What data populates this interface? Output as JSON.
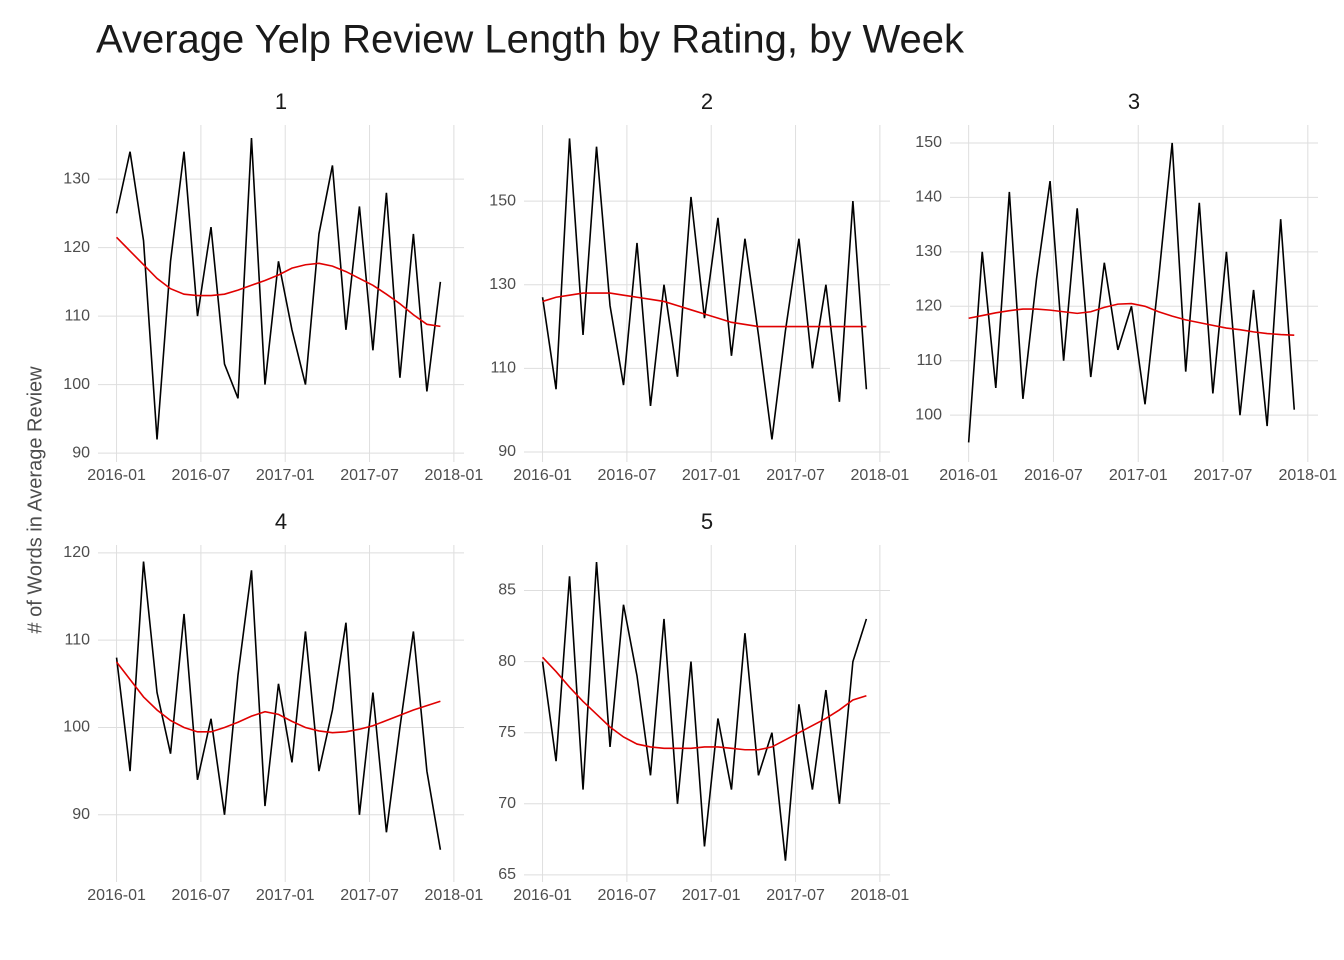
{
  "title": "Average Yelp Review Length by Rating, by Week",
  "y_label": "# of Words in Average Review",
  "chart_data": [
    {
      "type": "line",
      "title": "1",
      "x": [
        2016.0,
        2016.08,
        2016.16,
        2016.24,
        2016.32,
        2016.4,
        2016.48,
        2016.56,
        2016.64,
        2016.72,
        2016.8,
        2016.88,
        2016.96,
        2017.04,
        2017.12,
        2017.2,
        2017.28,
        2017.36,
        2017.44,
        2017.52,
        2017.6,
        2017.68,
        2017.76,
        2017.84,
        2017.92
      ],
      "series": [
        {
          "color": "#000000",
          "values": [
            125,
            134,
            121,
            92,
            118,
            134,
            110,
            123,
            103,
            98,
            136,
            100,
            118,
            108,
            100,
            122,
            132,
            108,
            126,
            105,
            128,
            101,
            122,
            99,
            115
          ]
        },
        {
          "color": "#e00000",
          "values": [
            121.5,
            119.5,
            117.5,
            115.5,
            114,
            113.2,
            113,
            113,
            113.2,
            113.8,
            114.5,
            115.2,
            116,
            117,
            117.5,
            117.7,
            117.3,
            116.5,
            115.5,
            114.5,
            113.2,
            111.8,
            110.2,
            108.8,
            108.5
          ]
        }
      ],
      "xlim": [
        2015.89,
        2018.06
      ],
      "xticks": [
        {
          "value": 2016.0,
          "label": "2016-01"
        },
        {
          "value": 2016.5,
          "label": "2016-07"
        },
        {
          "value": 2017.0,
          "label": "2017-01"
        },
        {
          "value": 2017.5,
          "label": "2017-07"
        },
        {
          "value": 2018.0,
          "label": "2018-01"
        }
      ],
      "ylim": [
        88.7,
        137.9
      ],
      "yticks": [
        90,
        100,
        110,
        120,
        130
      ],
      "grid": true
    },
    {
      "type": "line",
      "title": "2",
      "x": [
        2016.0,
        2016.08,
        2016.16,
        2016.24,
        2016.32,
        2016.4,
        2016.48,
        2016.56,
        2016.64,
        2016.72,
        2016.8,
        2016.88,
        2016.96,
        2017.04,
        2017.12,
        2017.2,
        2017.28,
        2017.36,
        2017.44,
        2017.52,
        2017.6,
        2017.68,
        2017.76,
        2017.84,
        2017.92
      ],
      "series": [
        {
          "color": "#000000",
          "values": [
            127,
            105,
            165,
            118,
            163,
            125,
            106,
            140,
            101,
            130,
            108,
            151,
            122,
            146,
            113,
            141,
            118,
            93,
            119,
            141,
            110,
            130,
            102,
            150,
            105
          ]
        },
        {
          "color": "#e00000",
          "values": [
            126,
            127,
            127.5,
            128,
            128,
            128,
            127.5,
            127,
            126.5,
            126,
            125,
            124,
            123,
            122,
            121,
            120.5,
            120,
            120,
            120,
            120,
            120,
            120,
            120,
            120,
            120
          ]
        }
      ],
      "xlim": [
        2015.89,
        2018.06
      ],
      "xticks": [
        {
          "value": 2016.0,
          "label": "2016-01"
        },
        {
          "value": 2016.5,
          "label": "2016-07"
        },
        {
          "value": 2017.0,
          "label": "2017-01"
        },
        {
          "value": 2017.5,
          "label": "2017-07"
        },
        {
          "value": 2018.0,
          "label": "2018-01"
        }
      ],
      "ylim": [
        87.6,
        168.2
      ],
      "yticks": [
        90,
        110,
        130,
        150
      ],
      "grid": true
    },
    {
      "type": "line",
      "title": "3",
      "x": [
        2016.0,
        2016.08,
        2016.16,
        2016.24,
        2016.32,
        2016.4,
        2016.48,
        2016.56,
        2016.64,
        2016.72,
        2016.8,
        2016.88,
        2016.96,
        2017.04,
        2017.12,
        2017.2,
        2017.28,
        2017.36,
        2017.44,
        2017.52,
        2017.6,
        2017.68,
        2017.76,
        2017.84,
        2017.92
      ],
      "series": [
        {
          "color": "#000000",
          "values": [
            95,
            130,
            105,
            141,
            103,
            125,
            143,
            110,
            138,
            107,
            128,
            112,
            120,
            102,
            125,
            150,
            108,
            139,
            104,
            130,
            100,
            123,
            98,
            136,
            101
          ]
        },
        {
          "color": "#e00000",
          "values": [
            117.8,
            118.3,
            118.8,
            119.2,
            119.5,
            119.5,
            119.3,
            119,
            118.7,
            119,
            119.8,
            120.4,
            120.5,
            120,
            119,
            118.2,
            117.5,
            117,
            116.5,
            116,
            115.7,
            115.3,
            115,
            114.8,
            114.7
          ]
        }
      ],
      "xlim": [
        2015.89,
        2018.06
      ],
      "xticks": [
        {
          "value": 2016.0,
          "label": "2016-01"
        },
        {
          "value": 2016.5,
          "label": "2016-07"
        },
        {
          "value": 2017.0,
          "label": "2017-01"
        },
        {
          "value": 2017.5,
          "label": "2017-07"
        },
        {
          "value": 2018.0,
          "label": "2018-01"
        }
      ],
      "ylim": [
        91.4,
        153.3
      ],
      "yticks": [
        100,
        110,
        120,
        130,
        140,
        150
      ],
      "grid": true
    },
    {
      "type": "line",
      "title": "4",
      "x": [
        2016.0,
        2016.08,
        2016.16,
        2016.24,
        2016.32,
        2016.4,
        2016.48,
        2016.56,
        2016.64,
        2016.72,
        2016.8,
        2016.88,
        2016.96,
        2017.04,
        2017.12,
        2017.2,
        2017.28,
        2017.36,
        2017.44,
        2017.52,
        2017.6,
        2017.68,
        2017.76,
        2017.84,
        2017.92
      ],
      "series": [
        {
          "color": "#000000",
          "values": [
            108,
            95,
            119,
            104,
            97,
            113,
            94,
            101,
            90,
            106,
            118,
            91,
            105,
            96,
            111,
            95,
            102,
            112,
            90,
            104,
            88,
            100,
            111,
            95,
            86
          ]
        },
        {
          "color": "#e00000",
          "values": [
            107.5,
            105.5,
            103.5,
            102,
            100.8,
            100,
            99.5,
            99.5,
            100,
            100.6,
            101.3,
            101.8,
            101.5,
            100.7,
            100,
            99.6,
            99.4,
            99.5,
            99.8,
            100.2,
            100.8,
            101.4,
            102,
            102.5,
            103
          ]
        }
      ],
      "xlim": [
        2015.89,
        2018.06
      ],
      "xticks": [
        {
          "value": 2016.0,
          "label": "2016-01"
        },
        {
          "value": 2016.5,
          "label": "2016-07"
        },
        {
          "value": 2017.0,
          "label": "2017-01"
        },
        {
          "value": 2017.5,
          "label": "2017-07"
        },
        {
          "value": 2018.0,
          "label": "2018-01"
        }
      ],
      "ylim": [
        82.3,
        120.9
      ],
      "yticks": [
        90,
        100,
        110,
        120
      ],
      "grid": true
    },
    {
      "type": "line",
      "title": "5",
      "x": [
        2016.0,
        2016.08,
        2016.16,
        2016.24,
        2016.32,
        2016.4,
        2016.48,
        2016.56,
        2016.64,
        2016.72,
        2016.8,
        2016.88,
        2016.96,
        2017.04,
        2017.12,
        2017.2,
        2017.28,
        2017.36,
        2017.44,
        2017.52,
        2017.6,
        2017.68,
        2017.76,
        2017.84,
        2017.92
      ],
      "series": [
        {
          "color": "#000000",
          "values": [
            80,
            73,
            86,
            71,
            87,
            74,
            84,
            79,
            72,
            83,
            70,
            80,
            67,
            76,
            71,
            82,
            72,
            75,
            66,
            77,
            71,
            78,
            70,
            80,
            83
          ]
        },
        {
          "color": "#e00000",
          "values": [
            80.3,
            79.3,
            78.2,
            77.2,
            76.3,
            75.4,
            74.7,
            74.2,
            74,
            73.9,
            73.9,
            73.9,
            74,
            74,
            73.9,
            73.8,
            73.8,
            74,
            74.5,
            75,
            75.5,
            76,
            76.6,
            77.3,
            77.6
          ]
        }
      ],
      "xlim": [
        2015.89,
        2018.06
      ],
      "xticks": [
        {
          "value": 2016.0,
          "label": "2016-01"
        },
        {
          "value": 2016.5,
          "label": "2016-07"
        },
        {
          "value": 2017.0,
          "label": "2017-01"
        },
        {
          "value": 2017.5,
          "label": "2017-07"
        },
        {
          "value": 2018.0,
          "label": "2018-01"
        }
      ],
      "ylim": [
        64.5,
        88.2
      ],
      "yticks": [
        65,
        70,
        75,
        80,
        85
      ],
      "grid": true
    }
  ]
}
